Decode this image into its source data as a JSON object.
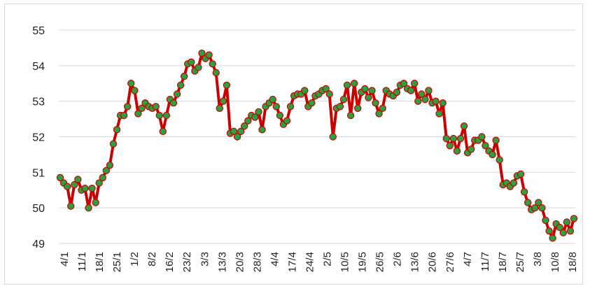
{
  "chart_data": {
    "type": "line",
    "title": "",
    "xlabel": "",
    "ylabel": "",
    "ylim": [
      49,
      55
    ],
    "yticks": [
      49,
      50,
      51,
      52,
      53,
      54,
      55
    ],
    "grid": "horizontal",
    "legend": "none",
    "line_color": "#cc0000",
    "marker_color": "#2e9e3e",
    "marker_edge_color": "#cc0000",
    "grid_color": "#d9d9d9",
    "xtick_labels": [
      "4/1",
      "11/1",
      "18/1",
      "25/1",
      "1/2",
      "8/2",
      "16/2",
      "23/2",
      "3/3",
      "13/3",
      "20/3",
      "28/3",
      "4/4",
      "17/4",
      "24/4",
      "2/5",
      "10/5",
      "19/5",
      "26/5",
      "2/6",
      "13/6",
      "20/6",
      "27/6",
      "4/7",
      "11/7",
      "18/7",
      "25/7",
      "3/8",
      "10/8",
      "18/8"
    ],
    "series": [
      {
        "values": [
          50.85,
          50.7,
          50.6,
          50.05,
          50.65,
          50.8,
          50.5,
          50.55,
          50.0,
          50.55,
          50.15,
          50.7,
          50.85,
          51.05,
          51.2,
          51.8,
          52.2,
          52.6,
          52.6,
          52.85,
          53.5,
          53.3,
          52.65,
          52.8,
          52.95,
          52.85,
          52.8,
          52.85,
          52.6,
          52.15,
          52.6,
          53.05,
          52.95,
          53.2,
          53.45,
          53.7,
          54.05,
          54.1,
          53.85,
          53.95,
          54.35,
          54.2,
          54.3,
          54.05,
          53.8,
          52.8,
          53.0,
          53.45,
          52.1,
          52.15,
          52.0,
          52.15,
          52.3,
          52.45,
          52.6,
          52.55,
          52.7,
          52.2,
          52.85,
          52.95,
          53.05,
          52.85,
          52.6,
          52.35,
          52.45,
          52.85,
          53.15,
          53.2,
          53.2,
          53.3,
          52.85,
          52.95,
          53.15,
          53.2,
          53.3,
          53.35,
          53.2,
          52.0,
          52.8,
          52.85,
          53.05,
          53.45,
          52.6,
          53.5,
          52.8,
          53.25,
          53.35,
          53.1,
          53.3,
          52.95,
          52.65,
          52.8,
          53.3,
          53.2,
          53.15,
          53.25,
          53.45,
          53.5,
          53.35,
          53.3,
          53.5,
          53.0,
          53.2,
          53.05,
          53.3,
          52.95,
          53.0,
          52.65,
          52.95,
          51.95,
          51.75,
          51.95,
          51.6,
          51.95,
          52.3,
          51.55,
          51.65,
          51.9,
          51.9,
          52.0,
          51.75,
          51.6,
          51.5,
          51.9,
          51.35,
          50.65,
          50.7,
          50.6,
          50.7,
          50.9,
          50.95,
          50.45,
          50.15,
          49.95,
          50.0,
          50.15,
          50.0,
          49.65,
          49.35,
          49.15,
          49.55,
          49.45,
          49.3,
          49.6,
          49.35,
          49.7
        ]
      }
    ]
  }
}
